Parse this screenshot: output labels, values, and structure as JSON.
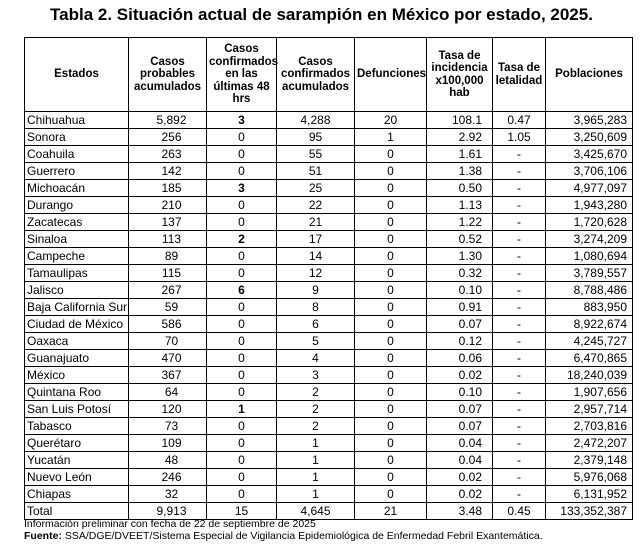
{
  "title": "Tabla 2. Situación actual de sarampión en México por estado, 2025.",
  "headers": {
    "estados": "Estados",
    "probables": "Casos probables acumulados",
    "confirmados_48": "Casos confirmados en las últimas 48 hrs",
    "confirmados": "Casos confirmados acumulados",
    "defunciones": "Defunciones",
    "incidencia": "Tasa de incidencia x100,000 hab",
    "letalidad": "Tasa de letalidad",
    "poblaciones": "Poblaciones"
  },
  "rows": [
    {
      "estado": "Chihuahua",
      "probables": "5,892",
      "confirmados_48": "3",
      "bold48": true,
      "confirmados": "4,288",
      "defunciones": "20",
      "incidencia": "108.1",
      "letalidad": "0.47",
      "poblacion": "3,965,283"
    },
    {
      "estado": "Sonora",
      "probables": "256",
      "confirmados_48": "0",
      "bold48": false,
      "confirmados": "95",
      "defunciones": "1",
      "incidencia": "2.92",
      "letalidad": "1.05",
      "poblacion": "3,250,609"
    },
    {
      "estado": "Coahuila",
      "probables": "263",
      "confirmados_48": "0",
      "bold48": false,
      "confirmados": "55",
      "defunciones": "0",
      "incidencia": "1.61",
      "letalidad": "-",
      "poblacion": "3,425,670"
    },
    {
      "estado": "Guerrero",
      "probables": "142",
      "confirmados_48": "0",
      "bold48": false,
      "confirmados": "51",
      "defunciones": "0",
      "incidencia": "1.38",
      "letalidad": "-",
      "poblacion": "3,706,106"
    },
    {
      "estado": "Michoacán",
      "probables": "185",
      "confirmados_48": "3",
      "bold48": true,
      "confirmados": "25",
      "defunciones": "0",
      "incidencia": "0.50",
      "letalidad": "-",
      "poblacion": "4,977,097"
    },
    {
      "estado": "Durango",
      "probables": "210",
      "confirmados_48": "0",
      "bold48": false,
      "confirmados": "22",
      "defunciones": "0",
      "incidencia": "1.13",
      "letalidad": "-",
      "poblacion": "1,943,280"
    },
    {
      "estado": "Zacatecas",
      "probables": "137",
      "confirmados_48": "0",
      "bold48": false,
      "confirmados": "21",
      "defunciones": "0",
      "incidencia": "1.22",
      "letalidad": "-",
      "poblacion": "1,720,628"
    },
    {
      "estado": "Sinaloa",
      "probables": "113",
      "confirmados_48": "2",
      "bold48": true,
      "confirmados": "17",
      "defunciones": "0",
      "incidencia": "0.52",
      "letalidad": "-",
      "poblacion": "3,274,209"
    },
    {
      "estado": "Campeche",
      "probables": "89",
      "confirmados_48": "0",
      "bold48": false,
      "confirmados": "14",
      "defunciones": "0",
      "incidencia": "1.30",
      "letalidad": "-",
      "poblacion": "1,080,694"
    },
    {
      "estado": "Tamaulipas",
      "probables": "115",
      "confirmados_48": "0",
      "bold48": false,
      "confirmados": "12",
      "defunciones": "0",
      "incidencia": "0.32",
      "letalidad": "-",
      "poblacion": "3,789,557"
    },
    {
      "estado": "Jalisco",
      "probables": "267",
      "confirmados_48": "6",
      "bold48": true,
      "confirmados": "9",
      "defunciones": "0",
      "incidencia": "0.10",
      "letalidad": "-",
      "poblacion": "8,788,486"
    },
    {
      "estado": "Baja California Sur",
      "probables": "59",
      "confirmados_48": "0",
      "bold48": false,
      "confirmados": "8",
      "defunciones": "0",
      "incidencia": "0.91",
      "letalidad": "-",
      "poblacion": "883,950"
    },
    {
      "estado": "Ciudad de México",
      "probables": "586",
      "confirmados_48": "0",
      "bold48": false,
      "confirmados": "6",
      "defunciones": "0",
      "incidencia": "0.07",
      "letalidad": "-",
      "poblacion": "8,922,674"
    },
    {
      "estado": "Oaxaca",
      "probables": "70",
      "confirmados_48": "0",
      "bold48": false,
      "confirmados": "5",
      "defunciones": "0",
      "incidencia": "0.12",
      "letalidad": "-",
      "poblacion": "4,245,727"
    },
    {
      "estado": "Guanajuato",
      "probables": "470",
      "confirmados_48": "0",
      "bold48": false,
      "confirmados": "4",
      "defunciones": "0",
      "incidencia": "0.06",
      "letalidad": "-",
      "poblacion": "6,470,865"
    },
    {
      "estado": "México",
      "probables": "367",
      "confirmados_48": "0",
      "bold48": false,
      "confirmados": "3",
      "defunciones": "0",
      "incidencia": "0.02",
      "letalidad": "-",
      "poblacion": "18,240,039"
    },
    {
      "estado": "Quintana Roo",
      "probables": "64",
      "confirmados_48": "0",
      "bold48": false,
      "confirmados": "2",
      "defunciones": "0",
      "incidencia": "0.10",
      "letalidad": "-",
      "poblacion": "1,907,656"
    },
    {
      "estado": "San Luis Potosí",
      "probables": "120",
      "confirmados_48": "1",
      "bold48": true,
      "confirmados": "2",
      "defunciones": "0",
      "incidencia": "0.07",
      "letalidad": "-",
      "poblacion": "2,957,714"
    },
    {
      "estado": "Tabasco",
      "probables": "73",
      "confirmados_48": "0",
      "bold48": false,
      "confirmados": "2",
      "defunciones": "0",
      "incidencia": "0.07",
      "letalidad": "-",
      "poblacion": "2,703,816"
    },
    {
      "estado": "Querétaro",
      "probables": "109",
      "confirmados_48": "0",
      "bold48": false,
      "confirmados": "1",
      "defunciones": "0",
      "incidencia": "0.04",
      "letalidad": "-",
      "poblacion": "2,472,207"
    },
    {
      "estado": "Yucatán",
      "probables": "48",
      "confirmados_48": "0",
      "bold48": false,
      "confirmados": "1",
      "defunciones": "0",
      "incidencia": "0.04",
      "letalidad": "-",
      "poblacion": "2,379,148"
    },
    {
      "estado": "Nuevo León",
      "probables": "246",
      "confirmados_48": "0",
      "bold48": false,
      "confirmados": "1",
      "defunciones": "0",
      "incidencia": "0.02",
      "letalidad": "-",
      "poblacion": "5,976,068"
    },
    {
      "estado": "Chiapas",
      "probables": "32",
      "confirmados_48": "0",
      "bold48": false,
      "confirmados": "1",
      "defunciones": "0",
      "incidencia": "0.02",
      "letalidad": "-",
      "poblacion": "6,131,952"
    }
  ],
  "total": {
    "estado": "Total",
    "probables": "9,913",
    "confirmados_48": "15",
    "confirmados": "4,645",
    "defunciones": "21",
    "incidencia": "3.48",
    "letalidad": "0.45",
    "poblacion": "133,352,387"
  },
  "note": "Información preliminar con fecha de 22 de septiembre de 2025",
  "source_label": "Fuente:",
  "source_text": " SSA/DGE/DVEET/Sistema Especial de Vigilancia Epidemiológica de Enfermedad Febril Exantemática."
}
